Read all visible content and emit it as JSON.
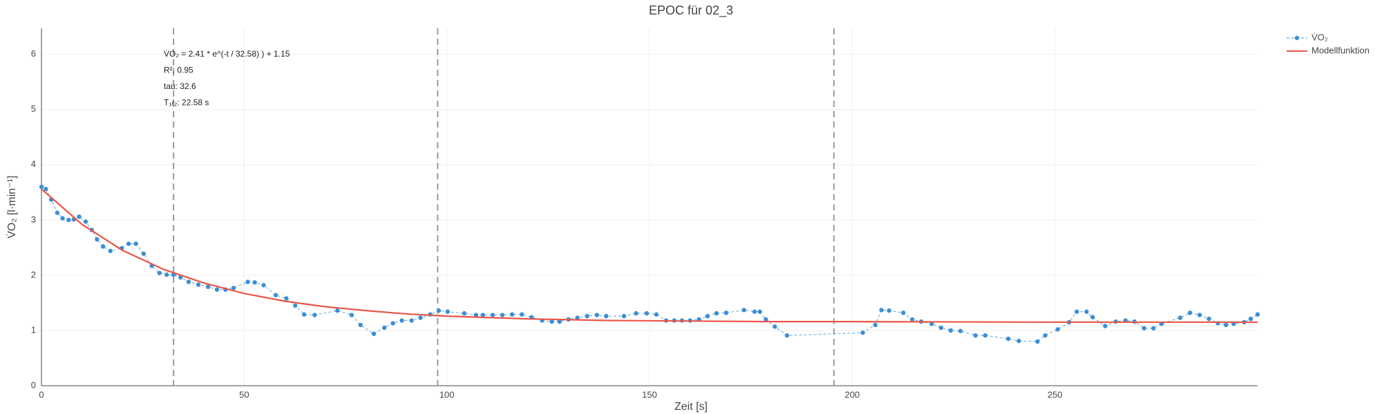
{
  "chart_data": {
    "type": "line",
    "title": "EPOC für 02_3",
    "x_label": "Zeit [s]",
    "y_label": "V̇O₂ [l·min⁻¹]",
    "xlim": [
      0,
      300
    ],
    "ylim": [
      0,
      6.47
    ],
    "xticks": [
      0,
      50,
      100,
      150,
      200,
      250
    ],
    "yticks": [
      0,
      1,
      2,
      3,
      4,
      5,
      6
    ],
    "grid": true,
    "legend": "top-right",
    "vlines": [
      32.58,
      97.74,
      195.48
    ],
    "annotations": [
      "V̇O₂ = 2.41 * e^(-t / 32.58) ) + 1.15",
      "R²: 0.95",
      "tau: 32.6",
      "T₁/₂: 22.58 s"
    ],
    "series": [
      {
        "name": "V̇O₂",
        "color": "#3b8fd5",
        "markers": true,
        "dash": true,
        "x": [
          0,
          1.1,
          2.4,
          3.9,
          5.2,
          6.7,
          8.0,
          9.3,
          10.9,
          12.4,
          13.7,
          15.2,
          17.0,
          19.8,
          21.5,
          23.3,
          25.2,
          27.2,
          29.1,
          30.9,
          32.6,
          34.3,
          36.3,
          38.7,
          41.1,
          43.3,
          45.4,
          47.4,
          50.9,
          52.6,
          54.8,
          57.8,
          60.4,
          62.6,
          64.8,
          67.4,
          73.0,
          76.5,
          78.7,
          82.0,
          84.6,
          86.7,
          88.9,
          91.3,
          93.5,
          95.9,
          98.0,
          100.2,
          104.3,
          107.2,
          108.9,
          111.3,
          113.7,
          116.1,
          118.5,
          120.9,
          123.5,
          125.9,
          127.8,
          130.0,
          132.2,
          134.6,
          137.0,
          139.3,
          143.7,
          146.7,
          149.3,
          151.7,
          154.1,
          156.1,
          158.0,
          160.0,
          162.2,
          164.3,
          166.5,
          168.9,
          173.3,
          175.9,
          177.2,
          178.7,
          180.9,
          183.9,
          202.6,
          205.7,
          207.2,
          209.1,
          212.6,
          214.8,
          217.0,
          219.6,
          221.9,
          224.3,
          226.7,
          230.4,
          232.8,
          238.5,
          241.1,
          245.7,
          247.6,
          250.7,
          253.5,
          255.4,
          257.8,
          259.3,
          262.4,
          265.0,
          267.4,
          269.6,
          272.0,
          274.3,
          276.3,
          280.9,
          283.3,
          285.7,
          288.0,
          290.2,
          292.2,
          294.1,
          296.7,
          298.3,
          300.0
        ],
        "values": [
          3.6,
          3.56,
          3.37,
          3.13,
          3.03,
          3.0,
          3.01,
          3.06,
          2.97,
          2.82,
          2.65,
          2.52,
          2.44,
          2.49,
          2.57,
          2.57,
          2.39,
          2.17,
          2.04,
          2.01,
          2.01,
          1.96,
          1.88,
          1.83,
          1.79,
          1.74,
          1.74,
          1.77,
          1.88,
          1.87,
          1.82,
          1.64,
          1.58,
          1.45,
          1.29,
          1.28,
          1.36,
          1.28,
          1.1,
          0.94,
          1.05,
          1.13,
          1.18,
          1.18,
          1.23,
          1.29,
          1.36,
          1.34,
          1.31,
          1.28,
          1.28,
          1.28,
          1.28,
          1.29,
          1.29,
          1.24,
          1.18,
          1.16,
          1.16,
          1.2,
          1.23,
          1.26,
          1.28,
          1.26,
          1.26,
          1.31,
          1.31,
          1.29,
          1.18,
          1.18,
          1.18,
          1.18,
          1.2,
          1.26,
          1.31,
          1.32,
          1.37,
          1.34,
          1.34,
          1.2,
          1.07,
          0.91,
          0.96,
          1.1,
          1.37,
          1.36,
          1.32,
          1.2,
          1.16,
          1.12,
          1.05,
          1.0,
          0.99,
          0.91,
          0.91,
          0.85,
          0.81,
          0.8,
          0.91,
          1.02,
          1.15,
          1.34,
          1.34,
          1.24,
          1.08,
          1.16,
          1.18,
          1.16,
          1.04,
          1.04,
          1.12,
          1.23,
          1.32,
          1.28,
          1.21,
          1.13,
          1.1,
          1.12,
          1.15,
          1.21,
          1.29
        ]
      },
      {
        "name": "Modellfunktion",
        "color": "#ea5548",
        "markers": false,
        "dash": false,
        "x": [
          0,
          10,
          20,
          30,
          40,
          50,
          60,
          70,
          80,
          90,
          100,
          120,
          140,
          160,
          180,
          200,
          250,
          300
        ],
        "values": [
          3.56,
          2.92,
          2.45,
          2.11,
          1.86,
          1.67,
          1.53,
          1.43,
          1.36,
          1.3,
          1.26,
          1.21,
          1.18,
          1.17,
          1.16,
          1.16,
          1.15,
          1.15
        ]
      }
    ]
  }
}
